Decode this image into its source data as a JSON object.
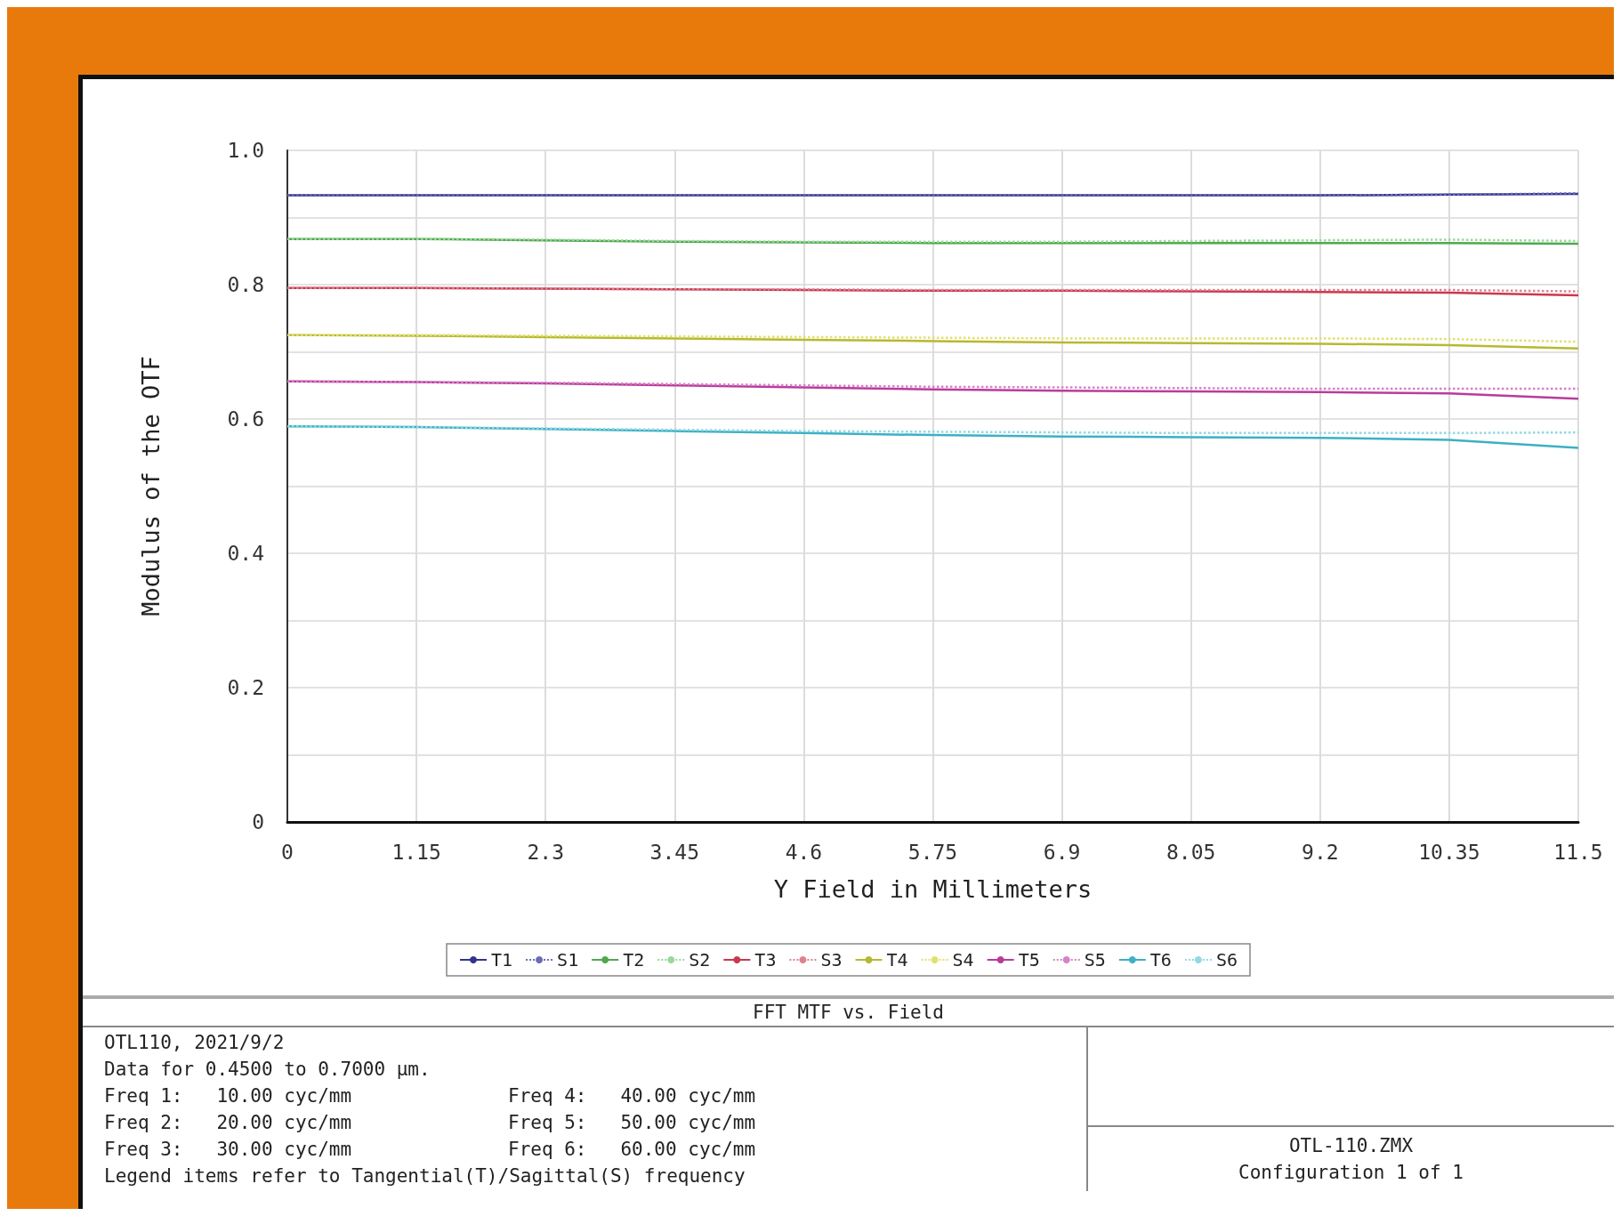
{
  "chart_data": {
    "type": "line",
    "title": "FFT MTF vs. Field",
    "xlabel": "Y Field in Millimeters",
    "ylabel": "Modulus of the OTF",
    "x": [
      0,
      1.15,
      2.3,
      3.45,
      4.6,
      5.75,
      6.9,
      8.05,
      9.2,
      10.35,
      11.5
    ],
    "xlim": [
      0,
      11.5
    ],
    "xticks": [
      0,
      1.15,
      2.3,
      3.45,
      4.6,
      5.75,
      6.9,
      8.05,
      9.2,
      10.35,
      11.5
    ],
    "ylim": [
      0,
      1
    ],
    "yticks": [
      {
        "value": 0,
        "label": "0"
      },
      {
        "value": 0.1,
        "label": null
      },
      0.2,
      {
        "value": 0.3,
        "label": null
      },
      0.4,
      {
        "value": 0.5,
        "label": null
      },
      0.6,
      {
        "value": 0.7,
        "label": null
      },
      0.8,
      {
        "value": 0.9,
        "label": null
      },
      {
        "value": 1,
        "label": "1.0"
      }
    ],
    "grid": true,
    "legend": "bottom",
    "marker": "none",
    "series": [
      {
        "name": "T1",
        "color": "#33338f",
        "line_style": "solid",
        "values": [
          0.933,
          0.933,
          0.933,
          0.933,
          0.933,
          0.933,
          0.933,
          0.933,
          0.933,
          0.934,
          0.935
        ]
      },
      {
        "name": "S1",
        "color": "#6a6ab8",
        "line_style": "dotted",
        "values": [
          0.933,
          0.933,
          0.933,
          0.933,
          0.933,
          0.933,
          0.933,
          0.933,
          0.933,
          0.934,
          0.936
        ]
      },
      {
        "name": "T2",
        "color": "#4fa84f",
        "line_style": "solid",
        "values": [
          0.868,
          0.868,
          0.866,
          0.864,
          0.863,
          0.862,
          0.862,
          0.862,
          0.862,
          0.862,
          0.861
        ]
      },
      {
        "name": "S2",
        "color": "#9ad89a",
        "line_style": "dotted",
        "values": [
          0.868,
          0.868,
          0.867,
          0.865,
          0.864,
          0.864,
          0.864,
          0.865,
          0.866,
          0.867,
          0.865
        ]
      },
      {
        "name": "T3",
        "color": "#c8384e",
        "line_style": "solid",
        "values": [
          0.795,
          0.795,
          0.794,
          0.793,
          0.792,
          0.791,
          0.791,
          0.79,
          0.789,
          0.788,
          0.784
        ]
      },
      {
        "name": "S3",
        "color": "#e08090",
        "line_style": "dotted",
        "values": [
          0.795,
          0.795,
          0.794,
          0.793,
          0.793,
          0.792,
          0.792,
          0.792,
          0.792,
          0.792,
          0.79
        ]
      },
      {
        "name": "T4",
        "color": "#b8b830",
        "line_style": "solid",
        "values": [
          0.725,
          0.724,
          0.722,
          0.72,
          0.718,
          0.716,
          0.714,
          0.713,
          0.712,
          0.71,
          0.705
        ]
      },
      {
        "name": "S4",
        "color": "#e0e070",
        "line_style": "dotted",
        "values": [
          0.725,
          0.725,
          0.724,
          0.723,
          0.722,
          0.721,
          0.72,
          0.72,
          0.72,
          0.719,
          0.715
        ]
      },
      {
        "name": "T5",
        "color": "#b83c9c",
        "line_style": "solid",
        "values": [
          0.656,
          0.655,
          0.653,
          0.65,
          0.647,
          0.644,
          0.642,
          0.641,
          0.64,
          0.638,
          0.63
        ]
      },
      {
        "name": "S5",
        "color": "#d880c8",
        "line_style": "dotted",
        "values": [
          0.656,
          0.655,
          0.654,
          0.652,
          0.65,
          0.648,
          0.647,
          0.646,
          0.645,
          0.645,
          0.645
        ]
      },
      {
        "name": "T6",
        "color": "#3cb0c4",
        "line_style": "solid",
        "values": [
          0.589,
          0.588,
          0.585,
          0.582,
          0.579,
          0.576,
          0.574,
          0.573,
          0.572,
          0.569,
          0.557
        ]
      },
      {
        "name": "S6",
        "color": "#90d8e4",
        "line_style": "dotted",
        "values": [
          0.589,
          0.588,
          0.586,
          0.584,
          0.582,
          0.581,
          0.58,
          0.579,
          0.579,
          0.579,
          0.58
        ]
      }
    ],
    "annotations": [
      "OTL110, 2021/9/2",
      "Data for 0.4500 to 0.7000 µm.",
      "Freq 1:   10.00 cyc/mm",
      "Freq 4:   40.00 cyc/mm",
      "Freq 2:   20.00 cyc/mm",
      "Freq 5:   50.00 cyc/mm",
      "Freq 3:   30.00 cyc/mm",
      "Freq 6:   60.00 cyc/mm",
      "Legend items refer to Tangential(T)/Sagittal(S) frequency",
      "OTL-110.ZMX",
      "Configuration 1 of 1"
    ]
  }
}
